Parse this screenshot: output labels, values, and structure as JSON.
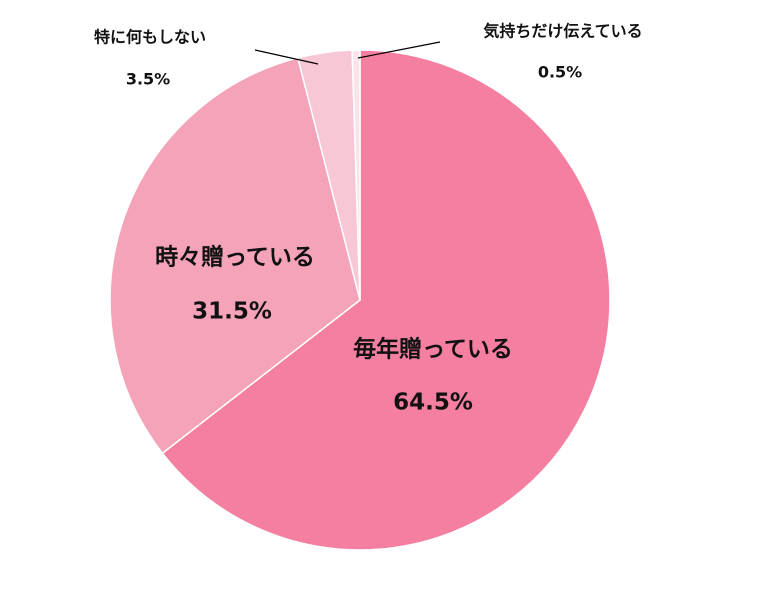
{
  "chart_data": {
    "type": "pie",
    "categories": [
      "毎年贈っている",
      "時々贈っている",
      "特に何もしない",
      "気持ちだけ伝えている"
    ],
    "values": [
      64.5,
      31.5,
      3.5,
      0.5
    ],
    "value_labels": [
      "64.5%",
      "31.5%",
      "3.5%",
      "0.5%"
    ],
    "colors": [
      "#f47fa0",
      "#f5a3b9",
      "#f8c7d5",
      "#fbe3ea"
    ]
  }
}
